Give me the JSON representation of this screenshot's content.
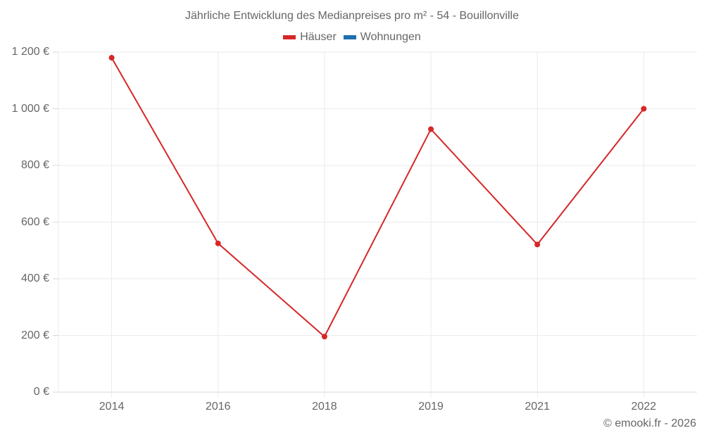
{
  "chart_data": {
    "type": "line",
    "title": "Jährliche Entwicklung des Medianpreises pro m² - 54 - Bouillonville",
    "xlabel": "",
    "ylabel": "",
    "categories": [
      "2014",
      "2016",
      "2018",
      "2019",
      "2021",
      "2022"
    ],
    "series": [
      {
        "name": "Häuser",
        "color": "#d62728",
        "values": [
          1180,
          525,
          196,
          928,
          521,
          1000
        ]
      },
      {
        "name": "Wohnungen",
        "color": "#1f6fad",
        "values": []
      }
    ],
    "ylim": [
      0,
      1200
    ],
    "yticks": [
      0,
      200,
      400,
      600,
      800,
      1000,
      1200
    ],
    "ytick_labels": [
      "0 €",
      "200 €",
      "400 €",
      "600 €",
      "800 €",
      "1 000 €",
      "1 200 €"
    ],
    "grid": true,
    "legend_position": "top"
  },
  "title": "Jährliche Entwicklung des Medianpreises pro m² - 54 - Bouillonville",
  "legend": [
    {
      "label": "Häuser",
      "color": "#d62728"
    },
    {
      "label": "Wohnungen",
      "color": "#1f6fad"
    }
  ],
  "credit": "© emooki.fr - 2026"
}
